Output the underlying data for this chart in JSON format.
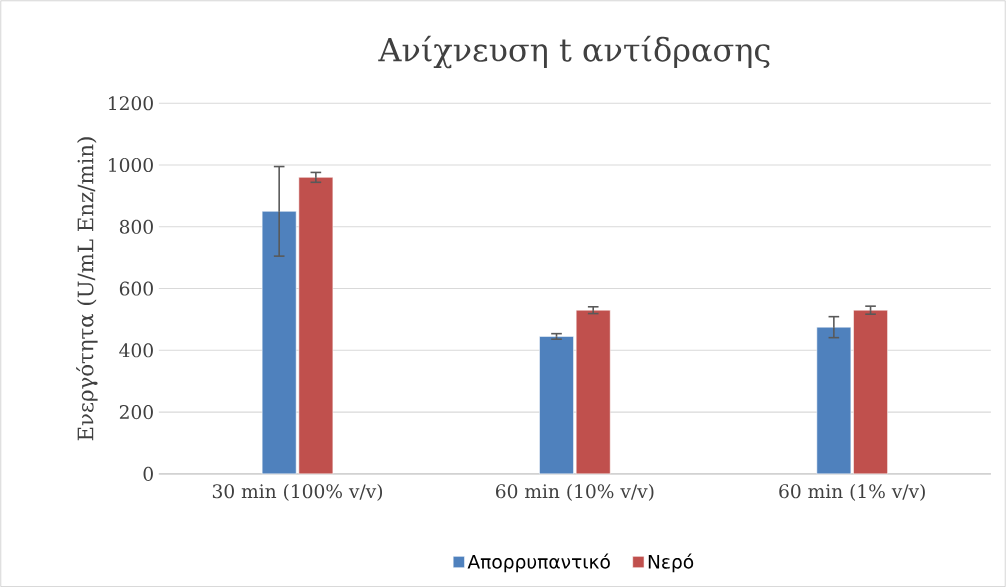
{
  "chart_data": {
    "type": "bar",
    "title": "Ανίχνευση t αντίδρασης",
    "ylabel": "Ενεργότητα (U/mL Enz/min)",
    "categories": [
      "30 min (100% v/v)",
      "60 min (10% v/v)",
      "60 min (1% v/v)"
    ],
    "series": [
      {
        "name": "Απορρυπαντικό",
        "color": "#4f81bd",
        "values": [
          850,
          445,
          475
        ],
        "errors": [
          145,
          9,
          34
        ]
      },
      {
        "name": "Νερό",
        "color": "#c0504d",
        "values": [
          960,
          530,
          530
        ],
        "errors": [
          16,
          11,
          13
        ]
      }
    ],
    "ylim": [
      0,
      1200
    ],
    "yticks": [
      0,
      200,
      400,
      600,
      800,
      1000,
      1200
    ],
    "grid": "y",
    "legend": "bottom"
  }
}
